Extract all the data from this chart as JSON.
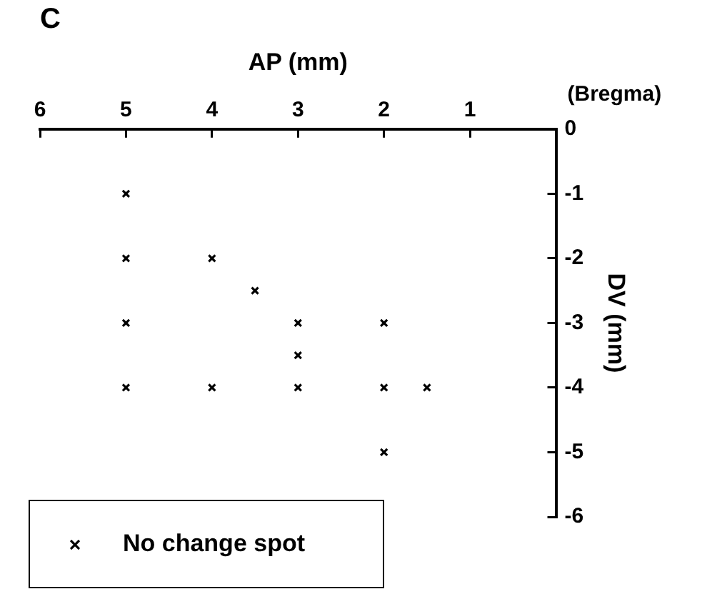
{
  "chart_data": {
    "type": "scatter",
    "title": "C",
    "xlabel": "AP (mm)",
    "ylabel": "DV (mm)",
    "annotations": [
      "(Bregma)"
    ],
    "series": [
      {
        "name": "No change spot",
        "color": "#000000",
        "x": [
          5,
          5,
          4,
          3.5,
          5,
          3,
          2,
          3,
          5,
          4,
          3,
          2,
          1.5,
          2
        ],
        "values": [
          -1,
          -2,
          -2,
          -2.5,
          -3,
          -3,
          -3,
          -3.5,
          -4,
          -4,
          -4,
          -4,
          -4,
          -5
        ]
      }
    ],
    "xlim": [
      6,
      0
    ],
    "xticks": [
      6,
      5,
      4,
      3,
      2,
      1
    ],
    "ylim": [
      -6,
      0
    ],
    "yticks": [
      0,
      -1,
      -2,
      -3,
      -4,
      -5,
      -6
    ],
    "grid": false,
    "legend": "bottom left",
    "marker": "cross"
  }
}
